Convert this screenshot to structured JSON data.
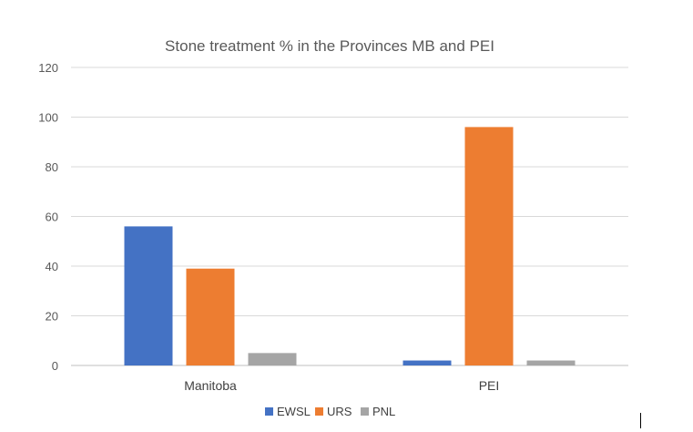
{
  "chart_data": {
    "type": "bar",
    "title": "Stone treatment % in the Provinces MB and PEI",
    "categories": [
      "Manitoba",
      "PEI"
    ],
    "series": [
      {
        "name": "EWSL",
        "values": [
          56,
          2
        ],
        "color": "#4472C4"
      },
      {
        "name": "URS",
        "values": [
          39,
          96
        ],
        "color": "#ED7D31"
      },
      {
        "name": "PNL",
        "values": [
          5,
          2
        ],
        "color": "#A5A5A5"
      }
    ],
    "ylim": [
      0,
      120
    ],
    "yticks": [
      "0",
      "20",
      "40",
      "60",
      "80",
      "100",
      "120"
    ],
    "grid": true,
    "legend_position": "bottom"
  }
}
